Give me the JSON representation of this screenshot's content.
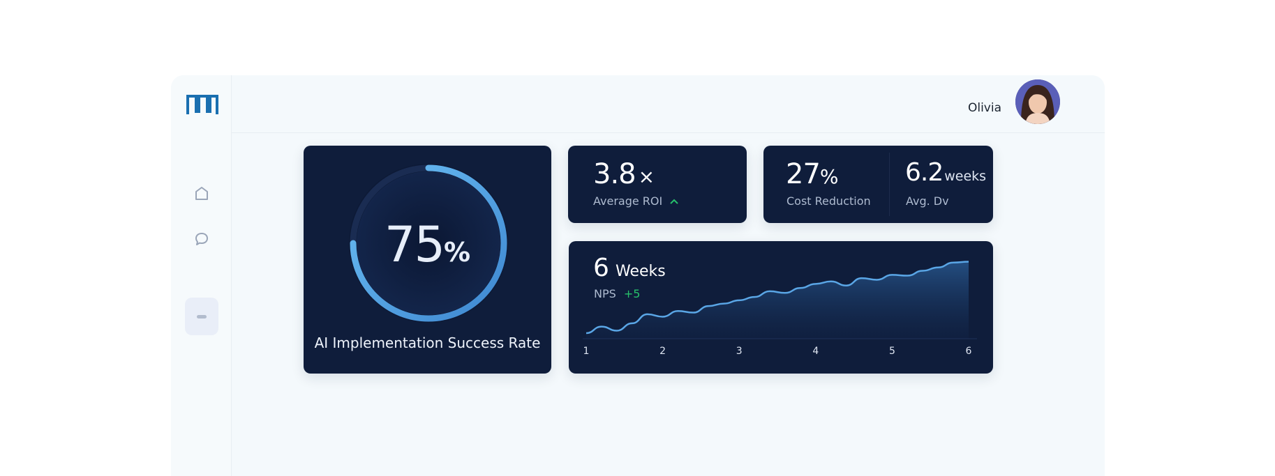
{
  "header": {
    "user_name": "Olivia"
  },
  "sidebar": {
    "items": [
      {
        "icon": "home-icon"
      },
      {
        "icon": "chat-icon"
      },
      {
        "icon": "minus-icon",
        "active": true
      }
    ]
  },
  "gauge": {
    "value": "75",
    "unit": "%",
    "label": "AI Implementation Success Rate",
    "fraction": 0.75
  },
  "roi": {
    "value": "3.8",
    "unit": "×",
    "label": "Average ROI",
    "trend_icon": "chevron-up-icon"
  },
  "cost": {
    "value": "27",
    "unit": "%",
    "label": "Cost Reduction"
  },
  "dev": {
    "value": "6.2",
    "unit": "weeks",
    "label": "Avg. Dv"
  },
  "chart": {
    "headline_value": "6",
    "headline_unit": "Weeks",
    "metric_label": "NPS",
    "metric_delta": "+5"
  },
  "colors": {
    "card_bg": "#0f1d3b",
    "accent": "#5aa6e6",
    "positive": "#27c16b",
    "brand": "#1a6fb0"
  },
  "chart_data": {
    "type": "area",
    "categories": [
      "1",
      "2",
      "3",
      "4",
      "5",
      "6"
    ],
    "x": [
      1,
      1.2,
      1.4,
      1.6,
      1.8,
      2,
      2.2,
      2.4,
      2.6,
      2.8,
      3,
      3.2,
      3.4,
      3.6,
      3.8,
      4,
      4.2,
      4.4,
      4.6,
      4.8,
      5,
      5.2,
      5.4,
      5.6,
      5.8,
      6
    ],
    "series": [
      {
        "values": [
          0.0,
          0.8,
          0.3,
          1.2,
          2.3,
          2.0,
          2.7,
          2.5,
          3.3,
          3.6,
          4.0,
          4.4,
          5.1,
          4.9,
          5.5,
          6.0,
          6.3,
          5.8,
          6.7,
          6.5,
          7.1,
          7.0,
          7.6,
          8.0,
          8.6,
          8.7
        ]
      }
    ],
    "xlabel": "",
    "ylabel": "",
    "grid": false
  }
}
